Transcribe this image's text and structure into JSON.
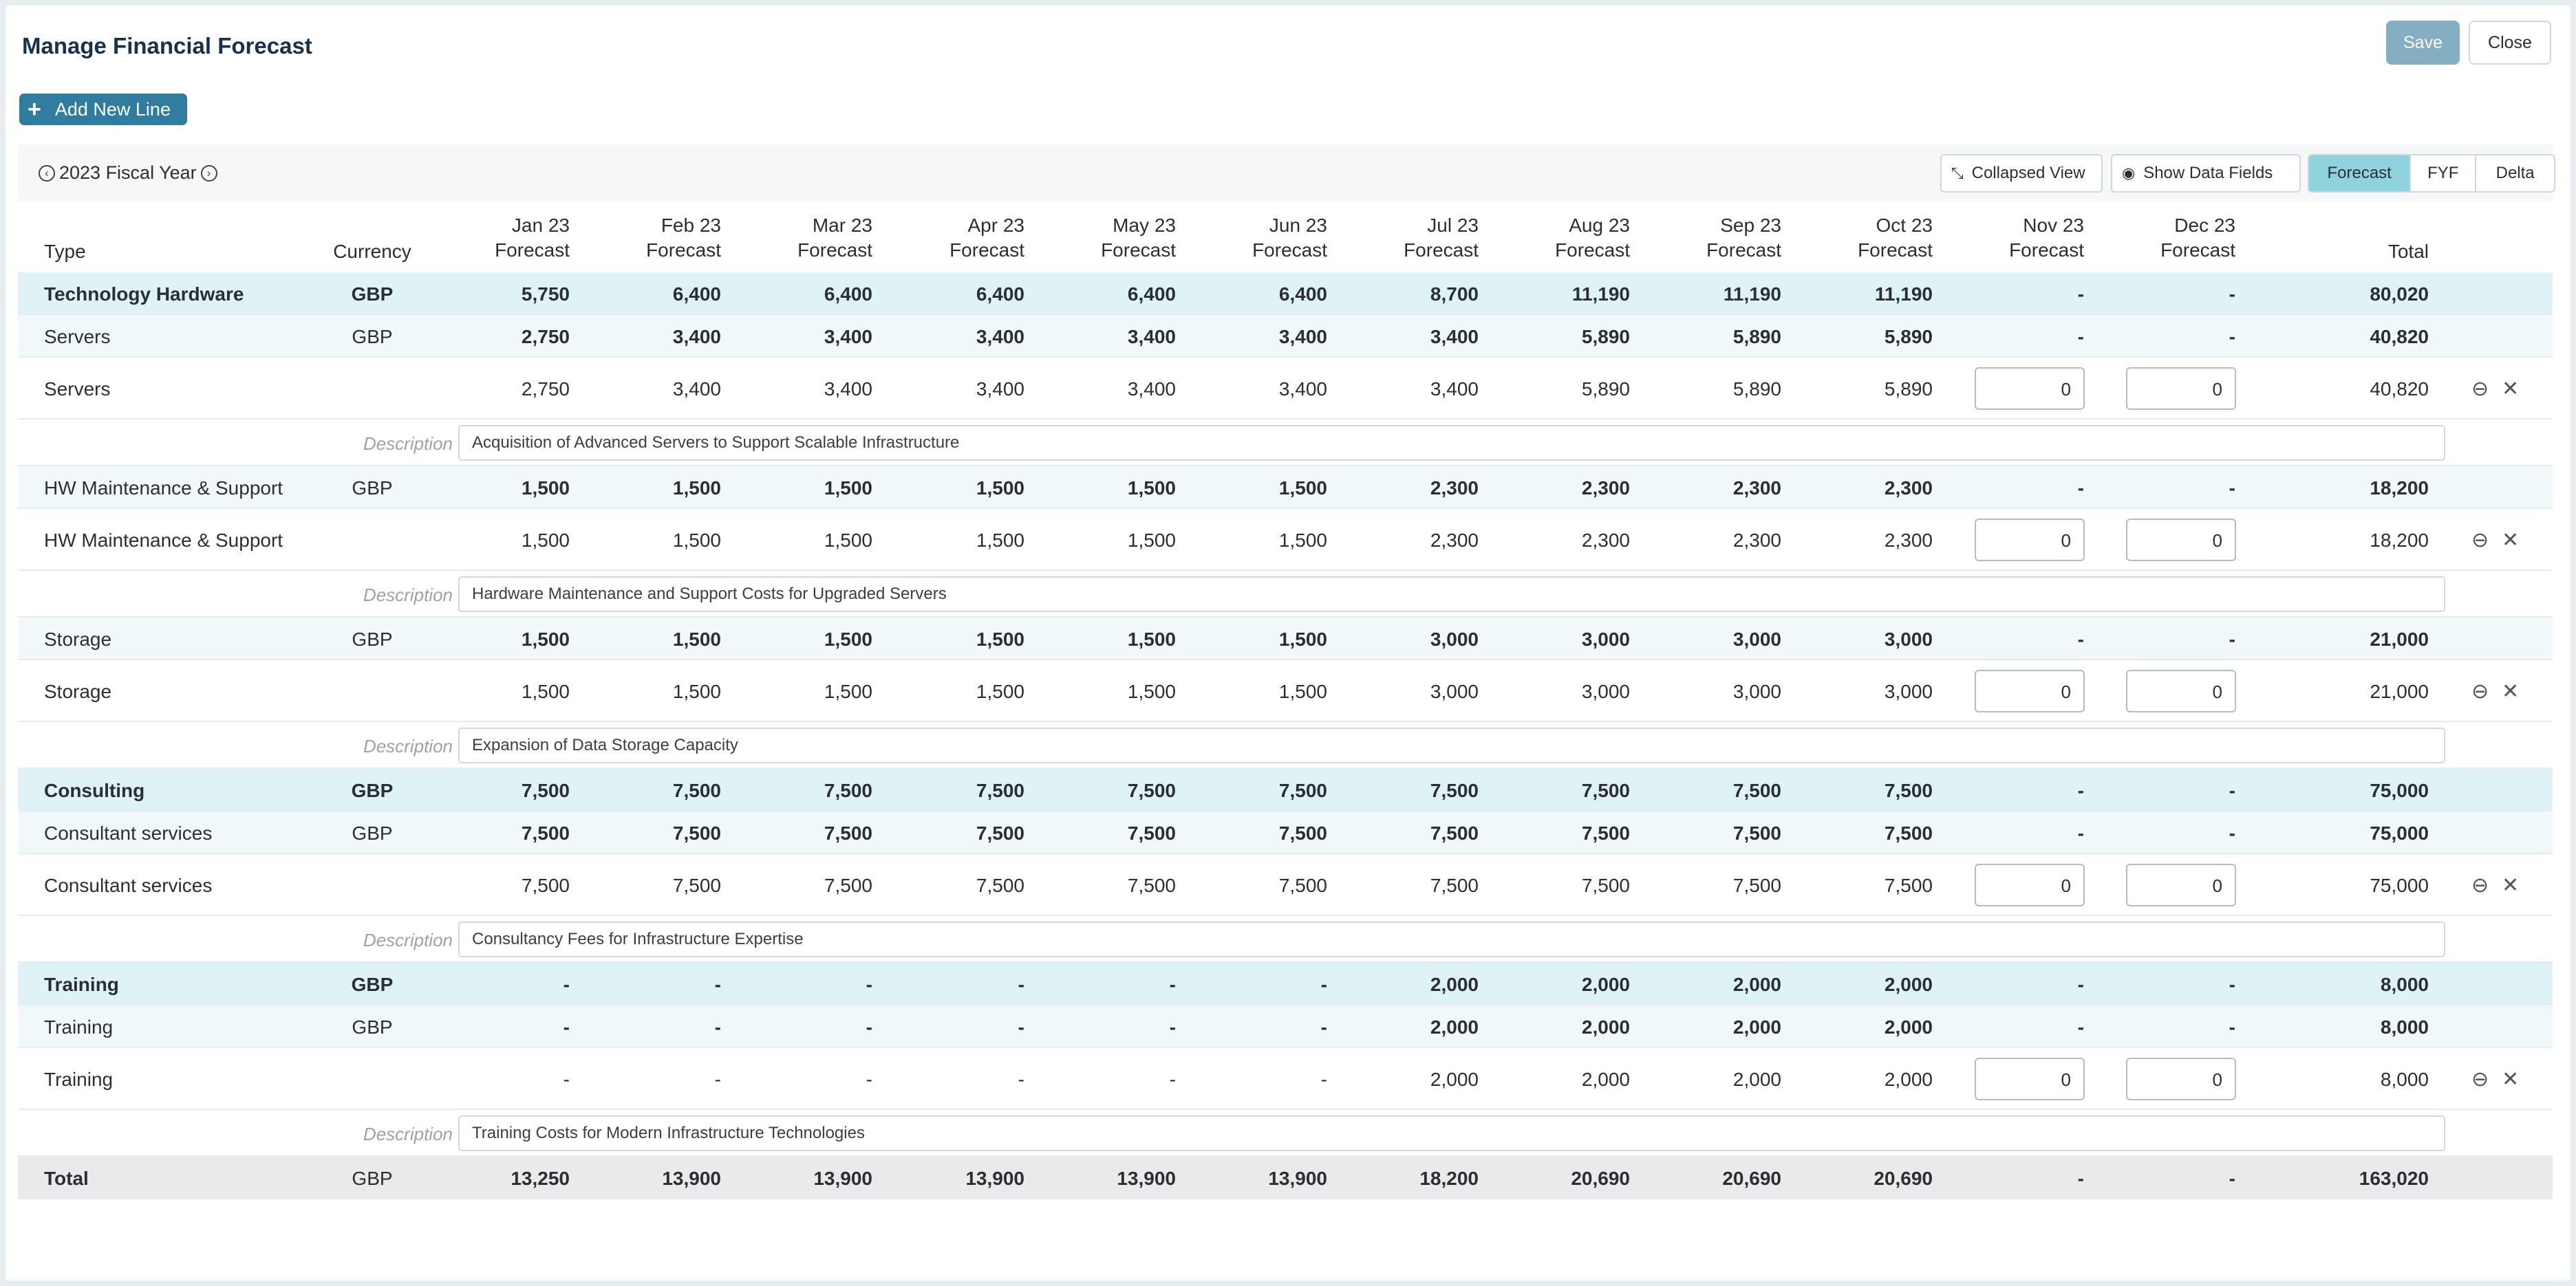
{
  "header": {
    "title": "Manage Financial Forecast",
    "save_label": "Save",
    "close_label": "Close"
  },
  "actions": {
    "add_line_label": "Add New Line"
  },
  "toolbar": {
    "fiscal_year": "2023 Fiscal Year",
    "collapsed_view": "Collapsed View",
    "show_data_fields": "Show Data Fields",
    "views": [
      "Forecast",
      "FYF",
      "Delta"
    ],
    "active_view": "Forecast"
  },
  "table": {
    "headers": {
      "type": "Type",
      "currency": "Currency",
      "total": "Total",
      "months": [
        {
          "m": "Jan 23",
          "s": "Forecast"
        },
        {
          "m": "Feb 23",
          "s": "Forecast"
        },
        {
          "m": "Mar 23",
          "s": "Forecast"
        },
        {
          "m": "Apr 23",
          "s": "Forecast"
        },
        {
          "m": "May 23",
          "s": "Forecast"
        },
        {
          "m": "Jun 23",
          "s": "Forecast"
        },
        {
          "m": "Jul 23",
          "s": "Forecast"
        },
        {
          "m": "Aug 23",
          "s": "Forecast"
        },
        {
          "m": "Sep 23",
          "s": "Forecast"
        },
        {
          "m": "Oct 23",
          "s": "Forecast"
        },
        {
          "m": "Nov 23",
          "s": "Forecast"
        },
        {
          "m": "Dec 23",
          "s": "Forecast"
        }
      ]
    },
    "description_label": "Description",
    "rows": [
      {
        "kind": "group",
        "type": "Technology Hardware",
        "currency": "GBP",
        "values": [
          "5,750",
          "6,400",
          "6,400",
          "6,400",
          "6,400",
          "6,400",
          "8,700",
          "11,190",
          "11,190",
          "11,190",
          "-",
          "-"
        ],
        "total": "80,020"
      },
      {
        "kind": "sub",
        "type": "Servers",
        "currency": "GBP",
        "values": [
          "2,750",
          "3,400",
          "3,400",
          "3,400",
          "3,400",
          "3,400",
          "3,400",
          "5,890",
          "5,890",
          "5,890",
          "-",
          "-"
        ],
        "total": "40,820"
      },
      {
        "kind": "line",
        "type": "Servers",
        "currency": "",
        "values": [
          "2,750",
          "3,400",
          "3,400",
          "3,400",
          "3,400",
          "3,400",
          "3,400",
          "5,890",
          "5,890",
          "5,890"
        ],
        "inputs": [
          "0",
          "0"
        ],
        "total": "40,820"
      },
      {
        "kind": "desc",
        "text": "Acquisition of Advanced Servers to Support Scalable Infrastructure"
      },
      {
        "kind": "sub",
        "type": "HW Maintenance & Support",
        "currency": "GBP",
        "values": [
          "1,500",
          "1,500",
          "1,500",
          "1,500",
          "1,500",
          "1,500",
          "2,300",
          "2,300",
          "2,300",
          "2,300",
          "-",
          "-"
        ],
        "total": "18,200"
      },
      {
        "kind": "line",
        "type": "HW Maintenance & Support",
        "currency": "",
        "values": [
          "1,500",
          "1,500",
          "1,500",
          "1,500",
          "1,500",
          "1,500",
          "2,300",
          "2,300",
          "2,300",
          "2,300"
        ],
        "inputs": [
          "0",
          "0"
        ],
        "total": "18,200"
      },
      {
        "kind": "desc",
        "text": "Hardware Maintenance and Support Costs for Upgraded Servers"
      },
      {
        "kind": "sub",
        "type": "Storage",
        "currency": "GBP",
        "values": [
          "1,500",
          "1,500",
          "1,500",
          "1,500",
          "1,500",
          "1,500",
          "3,000",
          "3,000",
          "3,000",
          "3,000",
          "-",
          "-"
        ],
        "total": "21,000"
      },
      {
        "kind": "line",
        "type": "Storage",
        "currency": "",
        "values": [
          "1,500",
          "1,500",
          "1,500",
          "1,500",
          "1,500",
          "1,500",
          "3,000",
          "3,000",
          "3,000",
          "3,000"
        ],
        "inputs": [
          "0",
          "0"
        ],
        "total": "21,000"
      },
      {
        "kind": "desc",
        "text": "Expansion of Data Storage Capacity"
      },
      {
        "kind": "group",
        "type": "Consulting",
        "currency": "GBP",
        "values": [
          "7,500",
          "7,500",
          "7,500",
          "7,500",
          "7,500",
          "7,500",
          "7,500",
          "7,500",
          "7,500",
          "7,500",
          "-",
          "-"
        ],
        "total": "75,000"
      },
      {
        "kind": "sub",
        "type": "Consultant services",
        "currency": "GBP",
        "values": [
          "7,500",
          "7,500",
          "7,500",
          "7,500",
          "7,500",
          "7,500",
          "7,500",
          "7,500",
          "7,500",
          "7,500",
          "-",
          "-"
        ],
        "total": "75,000"
      },
      {
        "kind": "line",
        "type": "Consultant services",
        "currency": "",
        "values": [
          "7,500",
          "7,500",
          "7,500",
          "7,500",
          "7,500",
          "7,500",
          "7,500",
          "7,500",
          "7,500",
          "7,500"
        ],
        "inputs": [
          "0",
          "0"
        ],
        "total": "75,000"
      },
      {
        "kind": "desc",
        "text": "Consultancy Fees for Infrastructure Expertise"
      },
      {
        "kind": "group",
        "type": "Training",
        "currency": "GBP",
        "values": [
          "-",
          "-",
          "-",
          "-",
          "-",
          "-",
          "2,000",
          "2,000",
          "2,000",
          "2,000",
          "-",
          "-"
        ],
        "total": "8,000"
      },
      {
        "kind": "sub",
        "type": "Training",
        "currency": "GBP",
        "values": [
          "-",
          "-",
          "-",
          "-",
          "-",
          "-",
          "2,000",
          "2,000",
          "2,000",
          "2,000",
          "-",
          "-"
        ],
        "total": "8,000"
      },
      {
        "kind": "line",
        "type": "Training",
        "currency": "",
        "values": [
          "-",
          "-",
          "-",
          "-",
          "-",
          "-",
          "2,000",
          "2,000",
          "2,000",
          "2,000"
        ],
        "inputs": [
          "0",
          "0"
        ],
        "total": "8,000"
      },
      {
        "kind": "desc",
        "text": "Training Costs for Modern Infrastructure Technologies"
      }
    ],
    "total_row": {
      "type": "Total",
      "currency": "GBP",
      "values": [
        "13,250",
        "13,900",
        "13,900",
        "13,900",
        "13,900",
        "13,900",
        "18,200",
        "20,690",
        "20,690",
        "20,690",
        "-",
        "-"
      ],
      "total": "163,020"
    }
  }
}
